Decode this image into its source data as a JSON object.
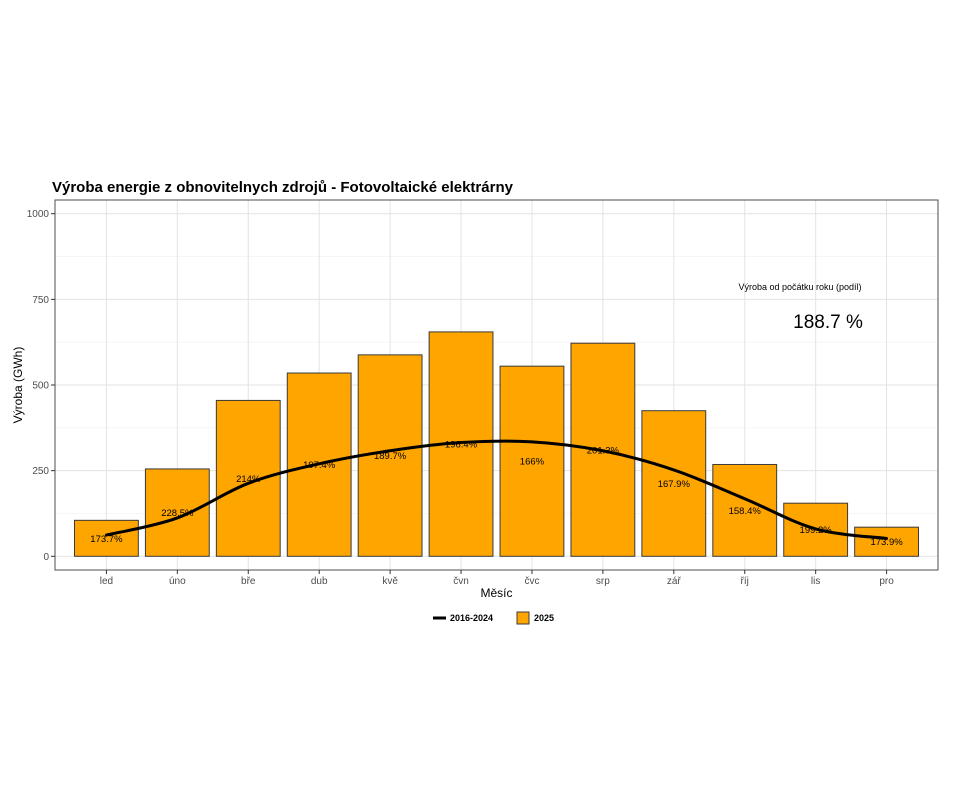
{
  "chart_data": {
    "type": "bar",
    "title": "Výroba energie z obnovitelnych zdrojů - Fotovoltaické elektrárny",
    "xlabel": "Měsíc",
    "ylabel": "Výroba (GWh)",
    "ylim": [
      -40,
      1040
    ],
    "yticks": [
      0,
      250,
      500,
      750,
      1000
    ],
    "grid": true,
    "legend_position": "bottom",
    "categories": [
      "led",
      "úno",
      "bře",
      "dub",
      "kvě",
      "čvn",
      "čvc",
      "srp",
      "zář",
      "říj",
      "lis",
      "pro"
    ],
    "series": [
      {
        "name": "2025",
        "kind": "bar",
        "color": "#FFA500",
        "values": [
          105,
          255,
          455,
          535,
          588,
          655,
          555,
          622,
          425,
          268,
          155,
          85
        ],
        "labels": [
          "173.7%",
          "228.5%",
          "214%",
          "197.4%",
          "189.7%",
          "196.4%",
          "166%",
          "201.3%",
          "167.9%",
          "158.4%",
          "199.2%",
          "173.9%"
        ]
      },
      {
        "name": "2016-2024",
        "kind": "line",
        "color": "#000000",
        "values": [
          62,
          112,
          213,
          270,
          308,
          332,
          334,
          308,
          252,
          168,
          80,
          52
        ]
      }
    ],
    "annotation": {
      "label": "Výroba od počátku roku (podíl)",
      "value": "188.7 %"
    }
  }
}
